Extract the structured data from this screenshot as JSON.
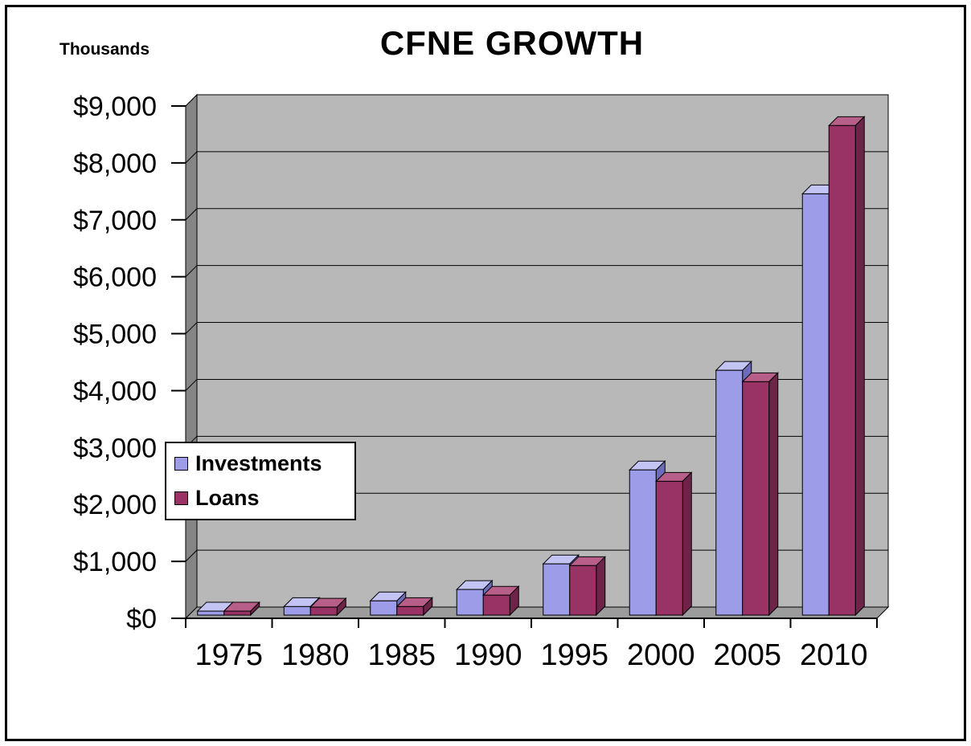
{
  "title": "CFNE GROWTH",
  "unit_label": "Thousands",
  "chart_data": {
    "type": "bar",
    "style": "3d-clustered-column",
    "title": "CFNE GROWTH",
    "ylabel": "Thousands",
    "xlabel": "",
    "categories": [
      "1975",
      "1980",
      "1985",
      "1990",
      "1995",
      "2000",
      "2005",
      "2010"
    ],
    "series": [
      {
        "name": "Investments",
        "values": [
          70,
          150,
          250,
          450,
          900,
          2550,
          4300,
          7400
        ],
        "color": "#9c9ce8",
        "color_top": "#c4c4f4",
        "color_side": "#6c6cba"
      },
      {
        "name": "Loans",
        "values": [
          70,
          140,
          150,
          350,
          870,
          2350,
          4100,
          8600
        ],
        "color": "#993366",
        "color_top": "#b75e89",
        "color_side": "#6e2449"
      }
    ],
    "ylim": [
      0,
      9000
    ],
    "ytick_step": 1000,
    "ytick_labels": [
      "$0",
      "$1,000",
      "$2,000",
      "$3,000",
      "$4,000",
      "$5,000",
      "$6,000",
      "$7,000",
      "$8,000",
      "$9,000"
    ],
    "grid": true,
    "legend_position": "middle-left-overlay"
  },
  "colors": {
    "background": "#ffffff",
    "frame_border": "#000000",
    "wall": "#b8b8b8",
    "side_wall": "#858585",
    "floor": "#9c9c9c",
    "gridline": "#000000",
    "text": "#000000"
  }
}
